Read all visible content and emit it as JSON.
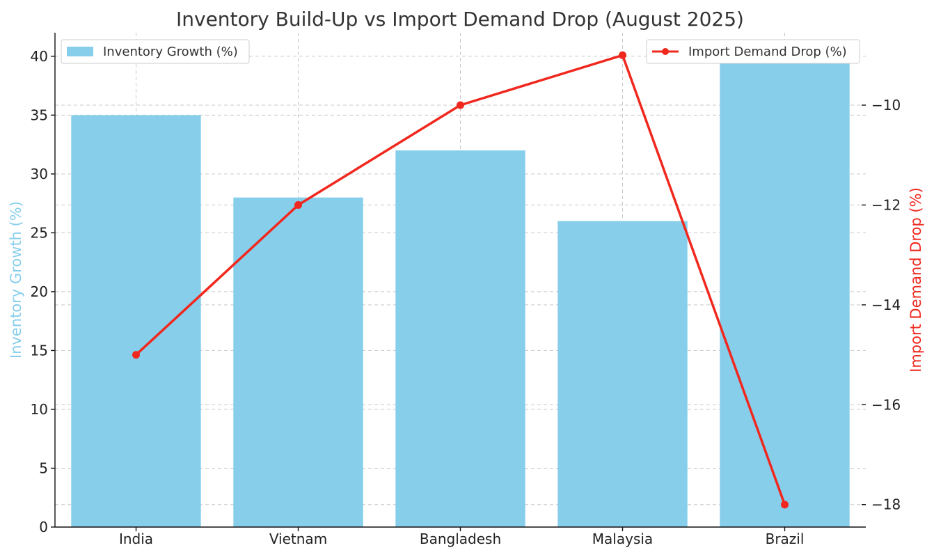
{
  "chart_data": {
    "type": "bar",
    "title": "Inventory Build-Up vs Import Demand Drop (August 2025)",
    "categories": [
      "India",
      "Vietnam",
      "Bangladesh",
      "Malaysia",
      "Brazil"
    ],
    "series": [
      {
        "name": "Inventory Growth (%)",
        "type": "bar",
        "axis": "left",
        "color": "#87CEEB",
        "values": [
          35,
          28,
          32,
          26,
          40
        ]
      },
      {
        "name": "Import Demand Drop (%)",
        "type": "line",
        "axis": "right",
        "color": "#F0281E",
        "values": [
          -15,
          -12,
          -10,
          -9,
          -18
        ]
      }
    ],
    "ylabel_left": "Inventory Growth (%)",
    "ylabel_right": "Import Demand Drop (%)",
    "ylim_left": [
      0,
      42
    ],
    "ylim_right": [
      -18.45,
      -8.55
    ],
    "yticks_left": [
      0,
      5,
      10,
      15,
      20,
      25,
      30,
      35,
      40
    ],
    "yticks_right": [
      -18,
      -16,
      -14,
      -12,
      -10
    ],
    "grid": true,
    "legend_left": "top-left",
    "legend_right": "top-right"
  }
}
